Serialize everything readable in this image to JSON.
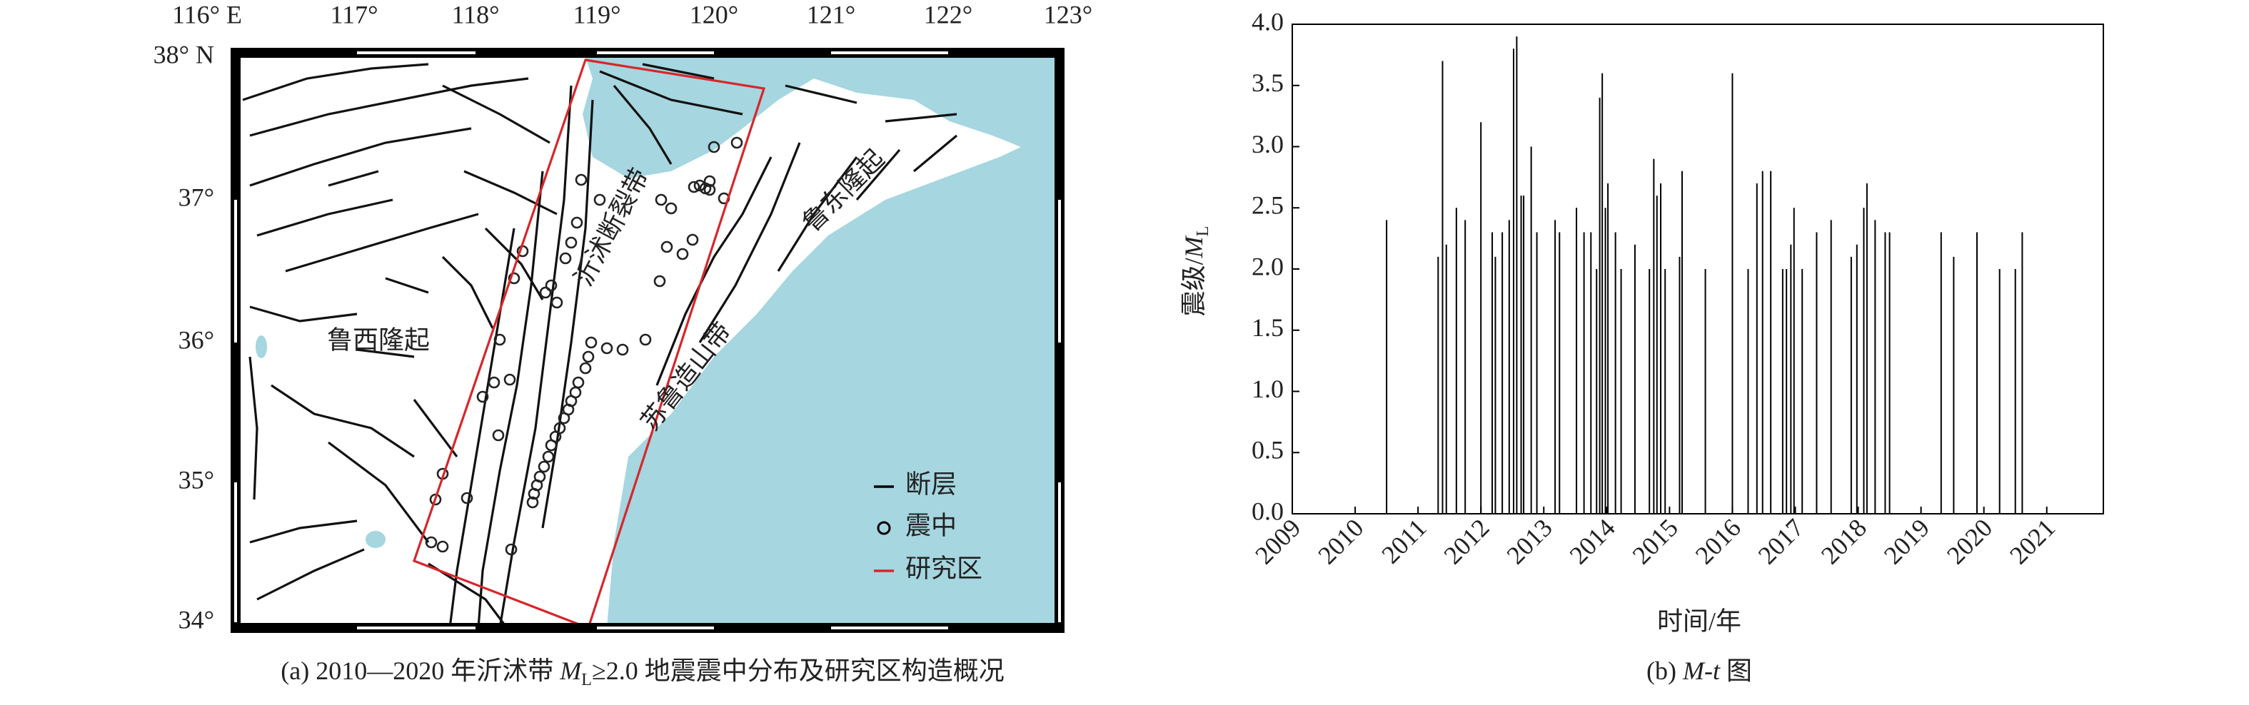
{
  "map": {
    "lon_labels": [
      "116° E",
      "117°",
      "118°",
      "119°",
      "120°",
      "121°",
      "122°",
      "123°"
    ],
    "lat_labels": [
      "38° N",
      "37°",
      "36°",
      "35°",
      "34°"
    ],
    "regions": [
      "鲁西隆起",
      "沂沭断裂带",
      "鲁东隆起",
      "苏鲁造山带"
    ],
    "legend": [
      "断层",
      "震中",
      "研究区"
    ],
    "caption": [
      "(a) 2010—2020 年沂沭带 ",
      "M",
      "L",
      "≥2.0 地震震中分布及研究区构造概况"
    ]
  },
  "chart_data": {
    "type": "stem",
    "color": "#000000",
    "caption": [
      "(b) ",
      "M-t",
      " 图"
    ],
    "x_label": "时间/年",
    "y_label": [
      "震级/",
      "M",
      "L"
    ],
    "x": [
      2010.5,
      2011.32,
      2011.39,
      2011.45,
      2011.61,
      2011.75,
      2012.0,
      2012.18,
      2012.23,
      2012.34,
      2012.45,
      2012.52,
      2012.57,
      2012.64,
      2012.68,
      2012.8,
      2012.89,
      2013.18,
      2013.25,
      2013.52,
      2013.64,
      2013.75,
      2013.84,
      2013.89,
      2013.93,
      2013.98,
      2014.02,
      2014.14,
      2014.23,
      2014.45,
      2014.68,
      2014.75,
      2014.8,
      2014.86,
      2014.93,
      2015.16,
      2015.2,
      2015.57,
      2016.0,
      2016.25,
      2016.39,
      2016.48,
      2016.61,
      2016.8,
      2016.86,
      2016.93,
      2016.98,
      2017.11,
      2017.34,
      2017.57,
      2017.89,
      2017.98,
      2018.09,
      2018.14,
      2018.27,
      2018.43,
      2018.5,
      2019.32,
      2019.52,
      2019.89,
      2020.25,
      2020.5,
      2020.61
    ],
    "values": [
      2.4,
      2.1,
      3.7,
      2.2,
      2.5,
      2.4,
      3.2,
      2.3,
      2.1,
      2.3,
      2.4,
      3.8,
      3.9,
      2.6,
      2.6,
      3.0,
      2.3,
      2.4,
      2.3,
      2.5,
      2.3,
      2.3,
      2.0,
      3.4,
      3.6,
      2.5,
      2.7,
      2.3,
      2.0,
      2.2,
      2.0,
      2.9,
      2.6,
      2.7,
      2.0,
      2.1,
      2.8,
      2.0,
      3.6,
      2.0,
      2.7,
      2.8,
      2.8,
      2.0,
      2.0,
      2.2,
      2.5,
      2.0,
      2.3,
      2.4,
      2.1,
      2.2,
      2.5,
      2.7,
      2.4,
      2.3,
      2.3,
      2.3,
      2.1,
      2.3,
      2.0,
      2.0,
      2.3
    ],
    "xlim": [
      2009,
      2021.9
    ],
    "xticks": [
      2009,
      2010,
      2011,
      2012,
      2013,
      2014,
      2015,
      2016,
      2017,
      2018,
      2019,
      2020,
      2021
    ],
    "ylim": [
      0,
      4
    ],
    "yticks": [
      {
        "value": 0,
        "label": "0.0"
      },
      0.5,
      {
        "value": 1,
        "label": "1.0"
      },
      1.5,
      {
        "value": 2,
        "label": "2.0"
      },
      2.5,
      {
        "value": 3,
        "label": "3.0"
      },
      3.5,
      {
        "value": 4,
        "label": "4.0"
      }
    ]
  }
}
